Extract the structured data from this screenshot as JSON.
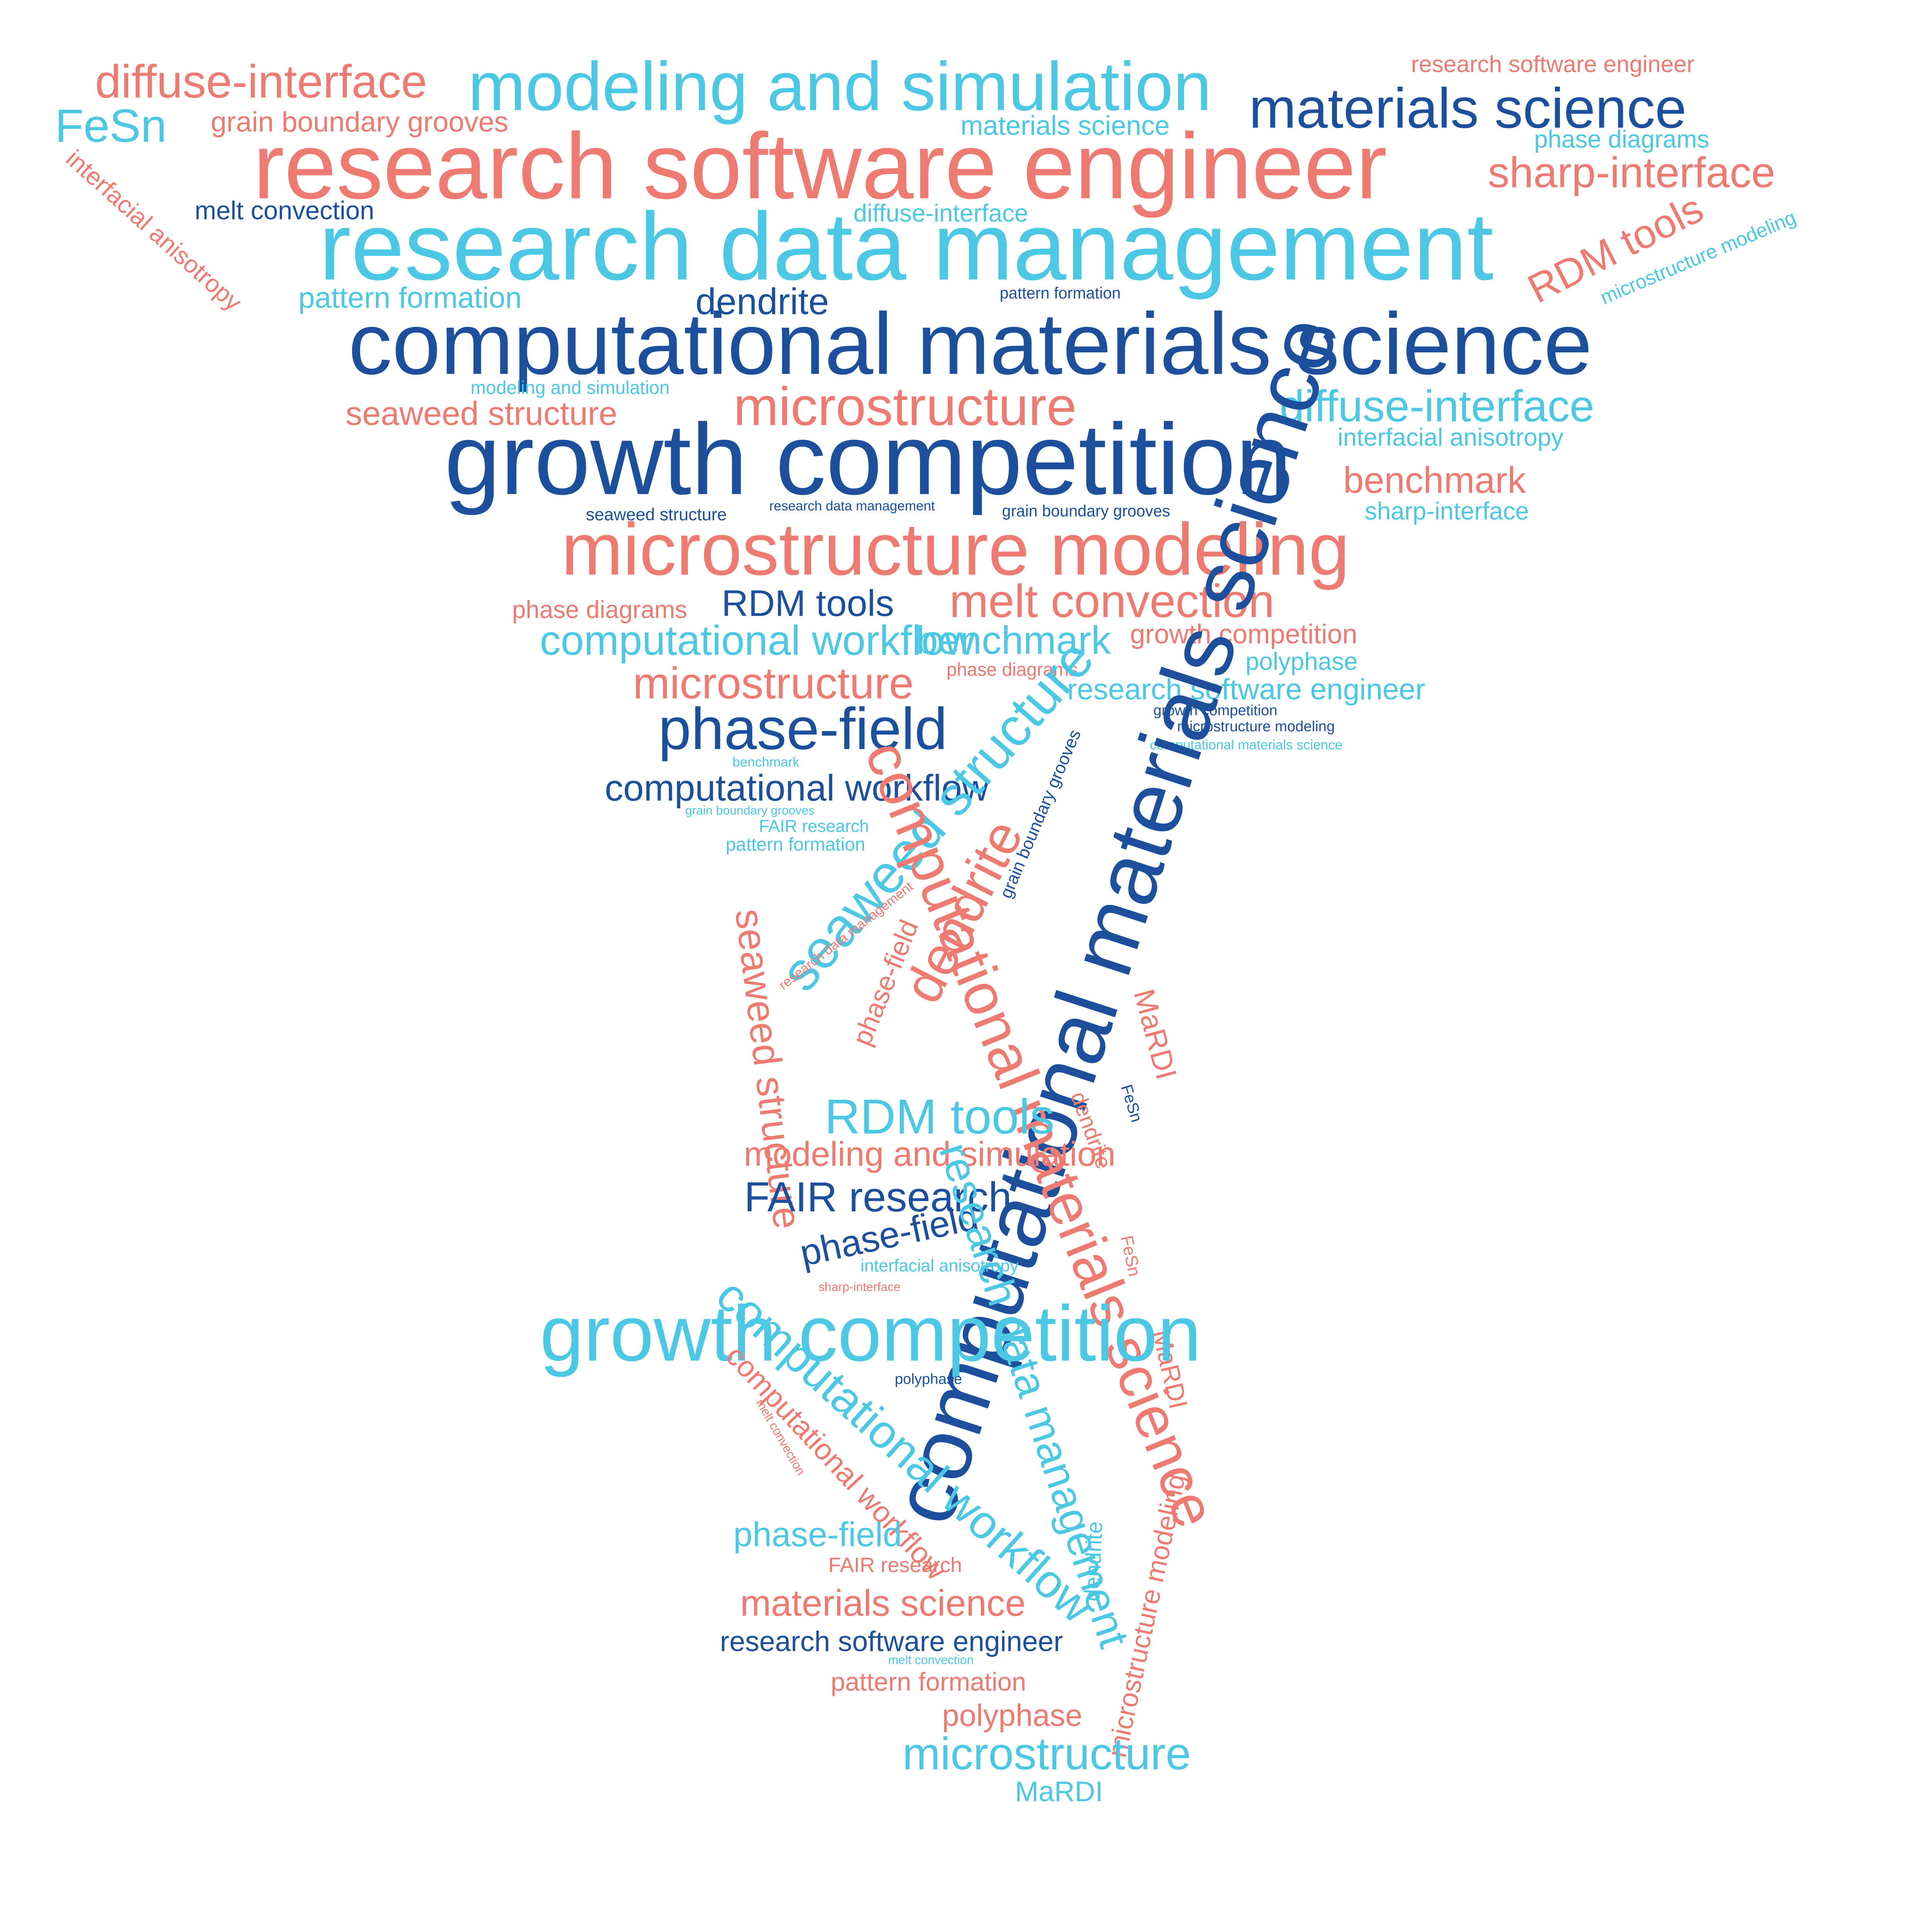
{
  "colors": {
    "coral": "#ee7b71",
    "cyan": "#4cc7e4",
    "navy": "#1c4f9c"
  },
  "words": [
    {
      "text": "diffuse-interface",
      "color": "coral"
    },
    {
      "text": "modeling and simulation",
      "color": "cyan"
    },
    {
      "text": "research software engineer",
      "color": "coral"
    },
    {
      "text": "materials science",
      "color": "navy"
    },
    {
      "text": "FeSn",
      "color": "cyan"
    },
    {
      "text": "grain boundary grooves",
      "color": "coral"
    },
    {
      "text": "materials science",
      "color": "cyan"
    },
    {
      "text": "phase diagrams",
      "color": "cyan"
    },
    {
      "text": "research software engineer",
      "color": "coral"
    },
    {
      "text": "sharp-interface",
      "color": "coral"
    },
    {
      "text": "interfacial anisotropy",
      "color": "coral"
    },
    {
      "text": "melt convection",
      "color": "navy"
    },
    {
      "text": "diffuse-interface",
      "color": "cyan"
    },
    {
      "text": "research data management",
      "color": "cyan"
    },
    {
      "text": "RDM tools",
      "color": "coral"
    },
    {
      "text": "microstructure modeling",
      "color": "cyan"
    },
    {
      "text": "pattern formation",
      "color": "cyan"
    },
    {
      "text": "dendrite",
      "color": "navy"
    },
    {
      "text": "pattern formation",
      "color": "navy"
    },
    {
      "text": "computational materials science",
      "color": "navy"
    },
    {
      "text": "modeling and simulation",
      "color": "cyan"
    },
    {
      "text": "microstructure",
      "color": "coral"
    },
    {
      "text": "diffuse-interface",
      "color": "cyan"
    },
    {
      "text": "seaweed structure",
      "color": "coral"
    },
    {
      "text": "interfacial anisotropy",
      "color": "cyan"
    },
    {
      "text": "growth competition",
      "color": "navy"
    },
    {
      "text": "benchmark",
      "color": "coral"
    },
    {
      "text": "seaweed structure",
      "color": "navy"
    },
    {
      "text": "research data management",
      "color": "navy"
    },
    {
      "text": "grain boundary grooves",
      "color": "navy"
    },
    {
      "text": "sharp-interface",
      "color": "cyan"
    },
    {
      "text": "microstructure modeling",
      "color": "coral"
    },
    {
      "text": "phase diagrams",
      "color": "coral"
    },
    {
      "text": "RDM tools",
      "color": "navy"
    },
    {
      "text": "melt convection",
      "color": "coral"
    },
    {
      "text": "computational  workflow",
      "color": "cyan"
    },
    {
      "text": "growth competition",
      "color": "coral"
    },
    {
      "text": "benchmark",
      "color": "cyan"
    },
    {
      "text": "polyphase",
      "color": "cyan"
    },
    {
      "text": "phase diagrams",
      "color": "coral"
    },
    {
      "text": "microstructure",
      "color": "coral"
    },
    {
      "text": "research software engineer",
      "color": "cyan"
    },
    {
      "text": "growth competition",
      "color": "navy"
    },
    {
      "text": "phase-field",
      "color": "navy"
    },
    {
      "text": "microstructure modeling",
      "color": "navy"
    },
    {
      "text": "computational materials science",
      "color": "cyan"
    },
    {
      "text": "benchmark",
      "color": "cyan"
    },
    {
      "text": "computational  workflow",
      "color": "navy"
    },
    {
      "text": "grain boundary grooves",
      "color": "cyan"
    },
    {
      "text": "FAIR research",
      "color": "cyan"
    },
    {
      "text": "pattern formation",
      "color": "cyan"
    },
    {
      "text": "seaweed structure",
      "color": "cyan"
    },
    {
      "text": "grain boundary grooves",
      "color": "navy"
    },
    {
      "text": "dendrite",
      "color": "coral"
    },
    {
      "text": "computational materials science",
      "color": "navy"
    },
    {
      "text": "research data management",
      "color": "coral"
    },
    {
      "text": "phase-field",
      "color": "coral"
    },
    {
      "text": "MaRDI",
      "color": "coral"
    },
    {
      "text": "seaweed structure",
      "color": "coral"
    },
    {
      "text": "computational materials science",
      "color": "coral"
    },
    {
      "text": "FeSn",
      "color": "navy"
    },
    {
      "text": "RDM tools",
      "color": "cyan"
    },
    {
      "text": "dendrite",
      "color": "coral"
    },
    {
      "text": "modeling and simulation",
      "color": "coral"
    },
    {
      "text": "FeSn",
      "color": "coral"
    },
    {
      "text": "FAIR research",
      "color": "navy"
    },
    {
      "text": "phase-field",
      "color": "navy"
    },
    {
      "text": "interfacial anisotropy",
      "color": "cyan"
    },
    {
      "text": "research data management",
      "color": "cyan"
    },
    {
      "text": "sharp-interface",
      "color": "coral"
    },
    {
      "text": "MaRDI",
      "color": "coral"
    },
    {
      "text": "growth competition",
      "color": "cyan"
    },
    {
      "text": "polyphase",
      "color": "navy"
    },
    {
      "text": "computational  workflow",
      "color": "cyan"
    },
    {
      "text": "melt convection",
      "color": "coral"
    },
    {
      "text": "computational  workflow",
      "color": "coral"
    },
    {
      "text": "dendrite",
      "color": "cyan"
    },
    {
      "text": "phase-field",
      "color": "cyan"
    },
    {
      "text": "microstructure modeling",
      "color": "coral"
    },
    {
      "text": "FAIR research",
      "color": "coral"
    },
    {
      "text": "materials science",
      "color": "coral"
    },
    {
      "text": "research software engineer",
      "color": "navy"
    },
    {
      "text": "melt convection",
      "color": "cyan"
    },
    {
      "text": "pattern formation",
      "color": "coral"
    },
    {
      "text": "polyphase",
      "color": "coral"
    },
    {
      "text": "microstructure",
      "color": "cyan"
    },
    {
      "text": "MaRDI",
      "color": "cyan"
    }
  ]
}
